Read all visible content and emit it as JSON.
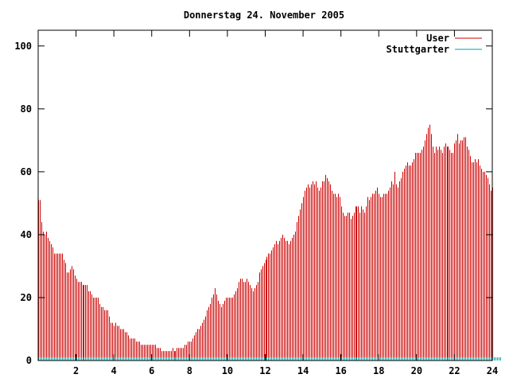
{
  "chart_data": {
    "type": "bar",
    "title": "Donnerstag 24. November 2005",
    "xlabel": "",
    "ylabel": "",
    "xlim": [
      0,
      24
    ],
    "ylim": [
      0,
      105
    ],
    "x_ticks": [
      2,
      4,
      6,
      8,
      10,
      12,
      14,
      16,
      18,
      20,
      22,
      24
    ],
    "x_tick_labels": [
      "2",
      "4",
      "6",
      "8",
      "10",
      "12",
      "14",
      "16",
      "18",
      "20",
      "22",
      "24"
    ],
    "y_ticks": [
      0,
      20,
      40,
      60,
      80,
      100
    ],
    "y_tick_labels": [
      "0",
      "20",
      "40",
      "60",
      "80",
      "100"
    ],
    "grid": false,
    "legend_position": "top-right",
    "series": [
      {
        "name": "User",
        "color": "#cc0000",
        "interval_minutes": 5,
        "values": [
          51,
          51,
          44,
          41,
          40,
          41,
          39,
          38,
          37,
          36,
          34,
          34,
          34,
          34,
          34,
          34,
          32,
          31,
          28,
          28,
          29,
          30,
          29,
          27,
          26,
          25,
          25,
          25,
          24,
          24,
          24,
          24,
          22,
          22,
          21,
          20,
          20,
          20,
          20,
          18,
          17,
          17,
          16,
          16,
          16,
          14,
          12,
          12,
          11,
          12,
          11,
          11,
          10,
          10,
          10,
          9,
          9,
          8,
          7,
          7,
          7,
          7,
          6,
          6,
          6,
          5,
          5,
          5,
          5,
          5,
          5,
          5,
          5,
          5,
          5,
          4,
          4,
          4,
          3,
          3,
          3,
          3,
          3,
          3,
          3,
          4,
          3,
          3,
          4,
          4,
          4,
          4,
          4,
          5,
          5,
          6,
          6,
          6,
          7,
          8,
          9,
          10,
          10,
          11,
          12,
          13,
          14,
          16,
          17,
          18,
          20,
          21,
          23,
          21,
          19,
          18,
          17,
          18,
          19,
          20,
          20,
          20,
          20,
          20,
          21,
          22,
          23,
          25,
          26,
          26,
          25,
          25,
          26,
          25,
          24,
          23,
          22,
          23,
          24,
          25,
          28,
          29,
          30,
          31,
          32,
          33,
          34,
          34,
          35,
          36,
          37,
          38,
          37,
          38,
          39,
          40,
          39,
          38,
          38,
          37,
          38,
          39,
          40,
          41,
          44,
          46,
          48,
          50,
          52,
          54,
          55,
          56,
          55,
          56,
          57,
          56,
          57,
          55,
          54,
          55,
          57,
          57,
          59,
          58,
          57,
          56,
          54,
          53,
          53,
          52,
          53,
          52,
          49,
          47,
          46,
          46,
          47,
          47,
          45,
          46,
          47,
          49,
          49,
          49,
          47,
          49,
          48,
          47,
          49,
          52,
          51,
          52,
          53,
          53,
          54,
          55,
          53,
          52,
          52,
          53,
          53,
          53,
          54,
          55,
          57,
          56,
          60,
          56,
          55,
          57,
          58,
          60,
          61,
          62,
          63,
          62,
          62,
          63,
          64,
          66,
          66,
          66,
          66,
          67,
          68,
          70,
          72,
          74,
          75,
          72,
          68,
          66,
          68,
          67,
          68,
          67,
          66,
          68,
          69,
          68,
          68,
          67,
          66,
          66,
          69,
          70,
          72,
          69,
          70,
          70,
          71,
          71,
          68,
          67,
          65,
          63,
          63,
          64,
          63,
          64,
          62,
          61,
          60,
          60,
          59,
          58,
          56,
          54,
          55
        ]
      },
      {
        "name": "Stuttgarter",
        "color": "#00a0a0",
        "interval_minutes": 5,
        "values": [
          1,
          1,
          1,
          1,
          1,
          1,
          1,
          1,
          1,
          1,
          1,
          1,
          1,
          1,
          1,
          1,
          1,
          1,
          1,
          1,
          1,
          1,
          1,
          1,
          1,
          1,
          1,
          1,
          1,
          1,
          1,
          1,
          1,
          1,
          1,
          1,
          1,
          1,
          1,
          1,
          1,
          1,
          1,
          1,
          1,
          1,
          1,
          1,
          1,
          1,
          1,
          1,
          1,
          1,
          1,
          1,
          1,
          1,
          1,
          1,
          1,
          1,
          1,
          1,
          1,
          1,
          1,
          1,
          1,
          1,
          1,
          1,
          1,
          1,
          1,
          1,
          1,
          1,
          1,
          1,
          1,
          1,
          1,
          1,
          1,
          1,
          1,
          1,
          1,
          1,
          1,
          1,
          1,
          1,
          1,
          1,
          1,
          1,
          1,
          1,
          1,
          1,
          1,
          1,
          1,
          1,
          1,
          1,
          1,
          1,
          1,
          1,
          1,
          1,
          1,
          1,
          1,
          1,
          1,
          1,
          1,
          1,
          1,
          1,
          1,
          1,
          1,
          1,
          1,
          1,
          1,
          1,
          1,
          1,
          1,
          1,
          1,
          1,
          1,
          1,
          1,
          1,
          1,
          1,
          1,
          1,
          1,
          1,
          1,
          1,
          1,
          1,
          1,
          1,
          1,
          1,
          1,
          1,
          1,
          1,
          1,
          1,
          1,
          1,
          1,
          1,
          1,
          1,
          1,
          1,
          1,
          1,
          1,
          1,
          1,
          1,
          1,
          1,
          1,
          1,
          1,
          1,
          1,
          1,
          1,
          1,
          1,
          1,
          1,
          1,
          1,
          1,
          1,
          1,
          1,
          1,
          1,
          1,
          1,
          1,
          1,
          1,
          1,
          1,
          1,
          1,
          1,
          1,
          1,
          1,
          1,
          1,
          1,
          1,
          1,
          1,
          1,
          1,
          1,
          1,
          1,
          1,
          1,
          1,
          1,
          1,
          1,
          1,
          1,
          1,
          1,
          1,
          1,
          1,
          1,
          1,
          1,
          1,
          1,
          1,
          1,
          1,
          1,
          1,
          1,
          1,
          1,
          1,
          1,
          1,
          1,
          1,
          1,
          1,
          1,
          1,
          1,
          1,
          1,
          1,
          1,
          1,
          1,
          1,
          1,
          1,
          1,
          1,
          1,
          1,
          1,
          1,
          1,
          1,
          1,
          1,
          1,
          1,
          1,
          1,
          1,
          1,
          1,
          1,
          1,
          1,
          1,
          1,
          1,
          1,
          1,
          1,
          1,
          1
        ]
      }
    ]
  }
}
